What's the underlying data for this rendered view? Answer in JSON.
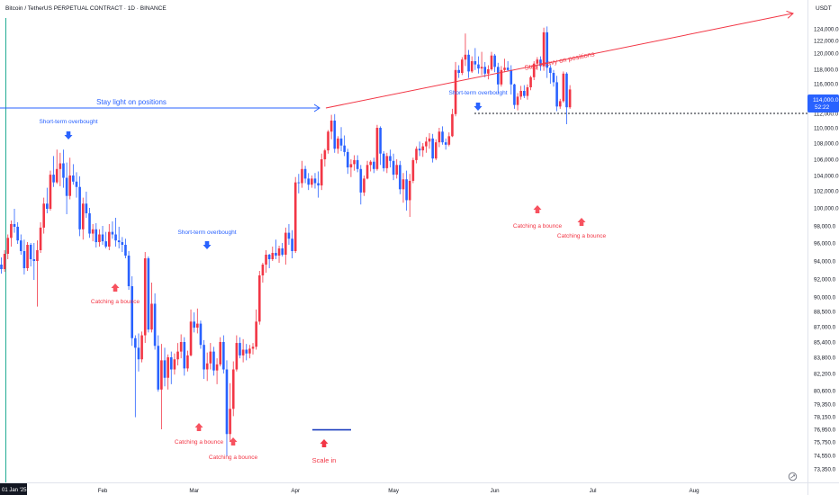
{
  "header": {
    "title": "Bitcoin / TetherUS PERPETUAL CONTRACT · 1D · BINANCE",
    "currency": "USDT"
  },
  "price_tag": {
    "price_text": "114,000.0",
    "timer_text": "52:22"
  },
  "colors": {
    "up": "#f23645",
    "down": "#2962ff",
    "blue_annot": "#2962ff",
    "red_annot": "#f23645",
    "axis_text": "#131722",
    "price_tag_bg": "#2962ff",
    "cursor_line": "#22ab94"
  },
  "chart_data": {
    "type": "candlestick",
    "symbol": "Bitcoin / TetherUS PERPETUAL CONTRACT",
    "interval": "1D",
    "exchange": "BINANCE",
    "y_axis": {
      "unit": "USDT",
      "ticks": [
        "124,000.0",
        "122,000.0",
        "120,000.0",
        "118,000.0",
        "116,000.0",
        "114,000.0",
        "112,000.0",
        "110,000.0",
        "108,000.0",
        "106,000.0",
        "104,000.0",
        "102,000.0",
        "100,000.0",
        "98,000.0",
        "96,000.0",
        "94,000.0",
        "92,000.0",
        "90,000.0",
        "88,500.0",
        "87,000.0",
        "85,400.0",
        "83,800.0",
        "82,200.0",
        "80,600.0",
        "79,350.0",
        "78,150.0",
        "76,950.0",
        "75,750.0",
        "74,550.0",
        "73,350.0"
      ]
    },
    "x_axis": {
      "ticks": [
        "01 Jan '25",
        "Feb",
        "Mar",
        "Apr",
        "May",
        "Jun",
        "Jul",
        "Aug"
      ]
    },
    "ohlc": [
      [
        93600,
        94400,
        92600,
        93100
      ],
      [
        93100,
        95200,
        92800,
        94800
      ],
      [
        94800,
        97000,
        94200,
        96600
      ],
      [
        96600,
        98600,
        95600,
        98200
      ],
      [
        98200,
        99900,
        97200,
        97900
      ],
      [
        97900,
        98400,
        95900,
        96300
      ],
      [
        96300,
        97000,
        94700,
        95100
      ],
      [
        95100,
        96400,
        92500,
        93200
      ],
      [
        93200,
        96100,
        92900,
        95800
      ],
      [
        95800,
        96000,
        93400,
        94200
      ],
      [
        94200,
        96000,
        91900,
        94000
      ],
      [
        94000,
        96300,
        89000,
        95200
      ],
      [
        95200,
        98400,
        94900,
        97800
      ],
      [
        97800,
        101200,
        97100,
        100500
      ],
      [
        100500,
        102400,
        99400,
        99900
      ],
      [
        99900,
        104600,
        99700,
        104100
      ],
      [
        104100,
        106400,
        102500,
        103100
      ],
      [
        103100,
        107200,
        102900,
        104800
      ],
      [
        104800,
        106800,
        102600,
        105500
      ],
      [
        105500,
        107200,
        102400,
        103700
      ],
      [
        103700,
        105600,
        99300,
        101400
      ],
      [
        101400,
        106200,
        101000,
        104000
      ],
      [
        104000,
        105400,
        102800,
        103200
      ],
      [
        103200,
        104400,
        101200,
        102500
      ],
      [
        102500,
        103900,
        96800,
        97600
      ],
      [
        97600,
        101200,
        96400,
        100500
      ],
      [
        100500,
        101900,
        98900,
        99400
      ],
      [
        99400,
        100000,
        96600,
        97100
      ],
      [
        97100,
        98200,
        96200,
        97600
      ],
      [
        97600,
        98300,
        95500,
        96100
      ],
      [
        96100,
        97600,
        95600,
        97000
      ],
      [
        97000,
        98000,
        95800,
        96200
      ],
      [
        96200,
        97300,
        95400,
        95600
      ],
      [
        95600,
        98200,
        95200,
        97300
      ],
      [
        97300,
        98500,
        96500,
        97000
      ],
      [
        97000,
        98900,
        95600,
        96300
      ],
      [
        96300,
        97900,
        95400,
        96100
      ],
      [
        96100,
        96700,
        95000,
        95800
      ],
      [
        95800,
        96500,
        94300,
        94600
      ],
      [
        94600,
        95100,
        90800,
        91200
      ],
      [
        91200,
        92300,
        85000,
        85800
      ],
      [
        85800,
        86100,
        78100,
        84800
      ],
      [
        84800,
        86300,
        82400,
        83600
      ],
      [
        83600,
        86500,
        83300,
        86100
      ],
      [
        86100,
        95000,
        85300,
        94300
      ],
      [
        94300,
        94500,
        86400,
        86700
      ],
      [
        86700,
        91600,
        86400,
        89300
      ],
      [
        89300,
        90400,
        84600,
        85000
      ],
      [
        85000,
        86100,
        80500,
        80700
      ],
      [
        80700,
        85200,
        76950,
        83500
      ],
      [
        83500,
        84800,
        81000,
        81800
      ],
      [
        81800,
        84100,
        80700,
        83800
      ],
      [
        83800,
        84400,
        81200,
        82600
      ],
      [
        82600,
        84200,
        82100,
        83600
      ],
      [
        83600,
        85300,
        83000,
        84400
      ],
      [
        84400,
        86200,
        83700,
        85400
      ],
      [
        85400,
        85900,
        82000,
        82700
      ],
      [
        82700,
        84500,
        82400,
        84000
      ],
      [
        84000,
        88700,
        83900,
        87500
      ],
      [
        87500,
        88400,
        86400,
        86900
      ],
      [
        86900,
        88800,
        86300,
        87300
      ],
      [
        87300,
        87600,
        84700,
        85100
      ],
      [
        85100,
        85600,
        81700,
        82600
      ],
      [
        82600,
        84300,
        81500,
        83200
      ],
      [
        83200,
        85300,
        82600,
        84400
      ],
      [
        84400,
        84900,
        82000,
        82500
      ],
      [
        82500,
        83700,
        81200,
        83100
      ],
      [
        83100,
        85900,
        82900,
        85400
      ],
      [
        85400,
        86100,
        82200,
        82600
      ],
      [
        82600,
        83500,
        74500,
        76500
      ],
      [
        76500,
        81300,
        75800,
        78900
      ],
      [
        78900,
        83400,
        78200,
        82600
      ],
      [
        82600,
        86100,
        82400,
        85300
      ],
      [
        85300,
        85900,
        83700,
        84000
      ],
      [
        84000,
        85700,
        83300,
        84600
      ],
      [
        84600,
        85200,
        83500,
        84200
      ],
      [
        84200,
        85100,
        83700,
        84700
      ],
      [
        84700,
        85300,
        84100,
        84900
      ],
      [
        84900,
        88700,
        84600,
        87500
      ],
      [
        87500,
        92900,
        87200,
        92400
      ],
      [
        92400,
        93800,
        91600,
        93600
      ],
      [
        93600,
        95200,
        92700,
        94700
      ],
      [
        94700,
        94800,
        93200,
        94200
      ],
      [
        94200,
        95600,
        94000,
        94900
      ],
      [
        94900,
        96400,
        94200,
        94600
      ],
      [
        94600,
        95700,
        93800,
        95400
      ],
      [
        95400,
        96000,
        94500,
        94700
      ],
      [
        94700,
        97800,
        93600,
        97200
      ],
      [
        97200,
        98200,
        95800,
        96500
      ],
      [
        96500,
        97500,
        94300,
        95100
      ],
      [
        95100,
        103800,
        94900,
        103100
      ],
      [
        103100,
        104200,
        101700,
        103000
      ],
      [
        103000,
        105800,
        102400,
        104800
      ],
      [
        104800,
        105200,
        103000,
        103600
      ],
      [
        103600,
        104300,
        102100,
        102800
      ],
      [
        102800,
        104000,
        102400,
        103600
      ],
      [
        103600,
        104300,
        102300,
        103000
      ],
      [
        103000,
        104500,
        101200,
        102700
      ],
      [
        102700,
        106700,
        102100,
        106000
      ],
      [
        106000,
        107300,
        105100,
        107100
      ],
      [
        107100,
        109700,
        106700,
        109500
      ],
      [
        109500,
        111800,
        108500,
        111000
      ],
      [
        111000,
        111900,
        106800,
        107300
      ],
      [
        107300,
        108900,
        106700,
        108600
      ],
      [
        108600,
        110100,
        107000,
        107700
      ],
      [
        107700,
        109000,
        106400,
        106900
      ],
      [
        106900,
        107300,
        104200,
        105000
      ],
      [
        105000,
        106000,
        103800,
        105400
      ],
      [
        105400,
        106500,
        104600,
        105900
      ],
      [
        105900,
        106500,
        104400,
        104800
      ],
      [
        104800,
        105300,
        100400,
        101800
      ],
      [
        101800,
        104000,
        101400,
        103600
      ],
      [
        103600,
        105800,
        103500,
        105300
      ],
      [
        105300,
        105900,
        104500,
        105700
      ],
      [
        105700,
        106200,
        104300,
        104800
      ],
      [
        104800,
        110400,
        104600,
        110000
      ],
      [
        110000,
        110200,
        105300,
        106700
      ],
      [
        106700,
        107000,
        104500,
        104900
      ],
      [
        104900,
        106800,
        104300,
        106400
      ],
      [
        106400,
        107200,
        105000,
        105800
      ],
      [
        105800,
        106700,
        103400,
        104100
      ],
      [
        104100,
        106000,
        103600,
        105300
      ],
      [
        105300,
        105800,
        101600,
        102200
      ],
      [
        102200,
        104300,
        100600,
        103500
      ],
      [
        103500,
        104600,
        99700,
        100900
      ],
      [
        100900,
        104200,
        99000,
        103300
      ],
      [
        103300,
        106200,
        103000,
        105900
      ],
      [
        105900,
        107600,
        105500,
        107300
      ],
      [
        107300,
        108200,
        106400,
        107100
      ],
      [
        107100,
        108000,
        106300,
        107600
      ],
      [
        107600,
        108800,
        106800,
        108200
      ],
      [
        108200,
        109300,
        107300,
        108600
      ],
      [
        108600,
        109200,
        105600,
        106100
      ],
      [
        106100,
        108500,
        105900,
        108100
      ],
      [
        108100,
        110000,
        107500,
        109500
      ],
      [
        109500,
        110200,
        107800,
        108100
      ],
      [
        108100,
        108600,
        107200,
        107800
      ],
      [
        107800,
        109400,
        107600,
        108900
      ],
      [
        108900,
        112600,
        108800,
        111900
      ],
      [
        111900,
        118900,
        111600,
        117900
      ],
      [
        117900,
        118500,
        116800,
        117500
      ],
      [
        117500,
        119500,
        117200,
        119200
      ],
      [
        119200,
        123200,
        118400,
        119800
      ],
      [
        119800,
        120500,
        116800,
        117700
      ],
      [
        117700,
        119600,
        117500,
        119000
      ],
      [
        119000,
        120800,
        117900,
        118600
      ],
      [
        118600,
        119600,
        117400,
        118100
      ],
      [
        118100,
        120200,
        117200,
        118300
      ],
      [
        118300,
        118900,
        116900,
        117400
      ],
      [
        117400,
        118500,
        116600,
        118000
      ],
      [
        118000,
        120200,
        117800,
        119700
      ],
      [
        119700,
        119900,
        117600,
        118300
      ],
      [
        118300,
        118800,
        114700,
        115900
      ],
      [
        115900,
        118400,
        115600,
        117900
      ],
      [
        117900,
        119300,
        117600,
        118200
      ],
      [
        118200,
        119000,
        117700,
        117900
      ],
      [
        117900,
        118500,
        114500,
        115900
      ],
      [
        115900,
        116000,
        112600,
        113100
      ],
      [
        113100,
        114700,
        112400,
        114200
      ],
      [
        114200,
        115700,
        113800,
        115000
      ],
      [
        115000,
        115800,
        114000,
        114300
      ],
      [
        114300,
        115900,
        113800,
        115500
      ],
      [
        115500,
        117100,
        115100,
        116900
      ],
      [
        116900,
        119000,
        116500,
        118700
      ],
      [
        118700,
        119500,
        117900,
        119200
      ],
      [
        119200,
        119600,
        117800,
        118400
      ],
      [
        118400,
        124200,
        117800,
        123400
      ],
      [
        123400,
        124400,
        116800,
        118200
      ],
      [
        118200,
        118500,
        116000,
        117500
      ],
      [
        117500,
        117900,
        115600,
        116200
      ],
      [
        116200,
        117100,
        112300,
        112900
      ],
      [
        112900,
        113900,
        112600,
        113600
      ],
      [
        113600,
        117700,
        113400,
        117400
      ],
      [
        117400,
        117600,
        110500,
        112800
      ],
      [
        112800,
        115800,
        112600,
        115200
      ]
    ],
    "annotations": {
      "arrows": [
        {
          "label": "Stay light on positions",
          "color": "blue"
        },
        {
          "label": "Stay heavy on positions",
          "color": "red"
        }
      ],
      "markers": [
        {
          "label": "Short-term overbought",
          "kind": "overbought",
          "date": "2025-01-21"
        },
        {
          "label": "Catching a bounce",
          "kind": "bounce",
          "date": "2025-02-03"
        },
        {
          "label": "Short-term overbought",
          "kind": "overbought",
          "date": "2025-02-24"
        },
        {
          "label": "Catching a bounce",
          "kind": "bounce",
          "date": "2025-02-28"
        },
        {
          "label": "Catching a bounce",
          "kind": "bounce",
          "date": "2025-03-11"
        },
        {
          "label": "Scale in",
          "kind": "scale",
          "date": "2025-04-07"
        },
        {
          "label": "Short-term overbought",
          "kind": "overbought",
          "date": "2025-05-22"
        },
        {
          "label": "Catching a bounce",
          "kind": "bounce",
          "date": "2025-06-05"
        },
        {
          "label": "Catching a bounce",
          "kind": "bounce",
          "date": "2025-06-22"
        }
      ],
      "scale_level": 76900,
      "support_level": 112000
    }
  }
}
